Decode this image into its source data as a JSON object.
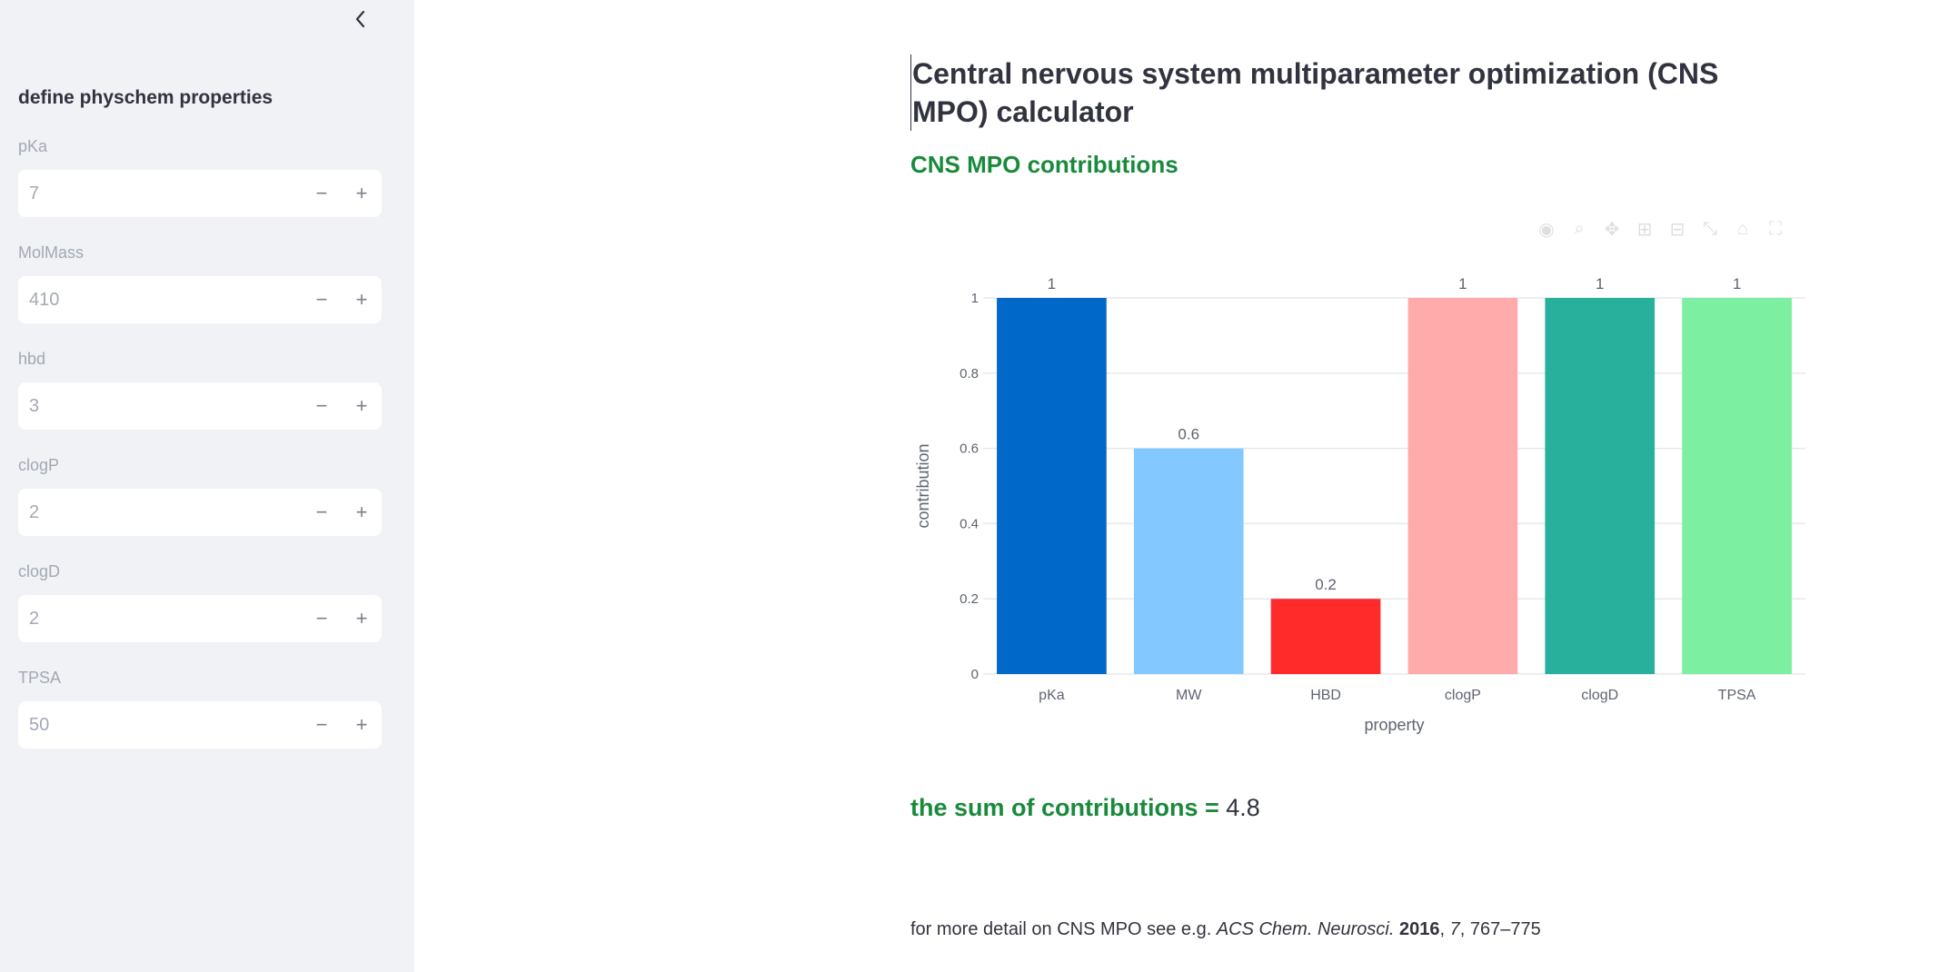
{
  "sidebar": {
    "collapse_icon": "chevron-left-icon",
    "heading": "define physchem properties",
    "fields": [
      {
        "label": "pKa",
        "value": "7"
      },
      {
        "label": "MolMass",
        "value": "410"
      },
      {
        "label": "hbd",
        "value": "3"
      },
      {
        "label": "clogP",
        "value": "2"
      },
      {
        "label": "clogD",
        "value": "2"
      },
      {
        "label": "TPSA",
        "value": "50"
      }
    ],
    "minus_glyph": "−",
    "plus_glyph": "+"
  },
  "main": {
    "title": "Central nervous system multiparameter optimization (CNS MPO) calculator",
    "subheading": "CNS MPO contributions",
    "sum_label": "the sum of contributions = ",
    "sum_value": "4.8",
    "reference": {
      "prefix": "for more detail on CNS MPO see e.g. ",
      "journal": "ACS Chem. Neurosci.",
      "year": "2016",
      "volume": "7",
      "pages": ", 767–775"
    },
    "accent_color": "#198a3c"
  },
  "chart_data": {
    "type": "bar",
    "categories": [
      "pKa",
      "MW",
      "HBD",
      "clogP",
      "clogD",
      "TPSA"
    ],
    "values": [
      1,
      0.6,
      0.2,
      1,
      1,
      1
    ],
    "data_labels": [
      "1",
      "0.6",
      "0.2",
      "1",
      "1",
      "1"
    ],
    "colors": [
      "#0068c9",
      "#83c9ff",
      "#ff2b2b",
      "#ffabab",
      "#29b09d",
      "#7defa1"
    ],
    "xlabel": "property",
    "ylabel": "contribution",
    "ylim": [
      0,
      1
    ],
    "yticks": [
      "0",
      "0.2",
      "0.4",
      "0.6",
      "0.8",
      "1"
    ],
    "grid": true
  }
}
